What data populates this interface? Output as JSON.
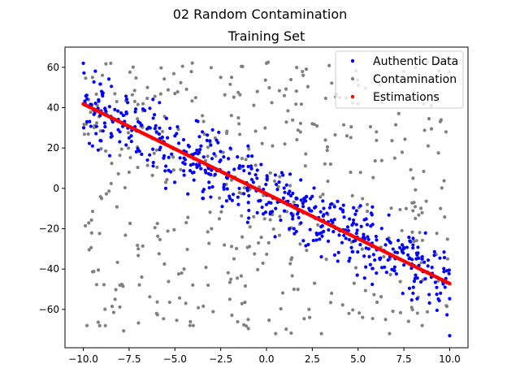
{
  "figure": {
    "suptitle": "02 Random Contamination"
  },
  "chart_data": {
    "type": "scatter",
    "title": "Training Set",
    "xlabel": "",
    "ylabel": "",
    "xlim": [
      -11,
      11
    ],
    "ylim": [
      -79,
      70
    ],
    "grid": false,
    "legend_position": "top-right",
    "x_ticks": [
      -10.0,
      -7.5,
      -5.0,
      -2.5,
      0.0,
      2.5,
      5.0,
      7.5,
      10.0
    ],
    "x_tick_labels": [
      "−10.0",
      "−7.5",
      "−5.0",
      "−2.5",
      "0.0",
      "2.5",
      "5.0",
      "7.5",
      "10.0"
    ],
    "y_ticks": [
      -60,
      -40,
      -20,
      0,
      20,
      40,
      60
    ],
    "y_tick_labels": [
      "−60",
      "−40",
      "−20",
      "0",
      "20",
      "40",
      "60"
    ],
    "series": [
      {
        "name": "Authentic Data",
        "color": "#0000ff",
        "description": "Points scattered around a line y ≈ -4.45x - 2.7 with noise of roughly ±12",
        "trend": {
          "slope": -4.45,
          "intercept": -2.7,
          "spread": 12
        },
        "x_range": [
          -10,
          10
        ],
        "sample_points": [
          [
            -10,
            62
          ],
          [
            -9.8,
            33
          ],
          [
            -9.5,
            21
          ],
          [
            -9,
            48
          ],
          [
            -8.5,
            35
          ],
          [
            -8,
            28
          ],
          [
            -7.5,
            25
          ],
          [
            -7,
            33
          ],
          [
            -6.5,
            14
          ],
          [
            -6,
            28
          ],
          [
            -5.5,
            0
          ],
          [
            -5,
            26
          ],
          [
            -4.5,
            15
          ],
          [
            -4,
            12
          ],
          [
            -3.5,
            28
          ],
          [
            -3,
            9
          ],
          [
            -2.5,
            14
          ],
          [
            -2,
            -5
          ],
          [
            -1.5,
            10
          ],
          [
            -1,
            16
          ],
          [
            -0.5,
            9
          ],
          [
            0,
            -8
          ],
          [
            0.5,
            -10
          ],
          [
            1,
            -2
          ],
          [
            1.5,
            -20
          ],
          [
            2,
            -9
          ],
          [
            2.5,
            -4
          ],
          [
            3,
            -22
          ],
          [
            3.5,
            -8
          ],
          [
            4,
            -21
          ],
          [
            4.5,
            -36
          ],
          [
            5,
            -25
          ],
          [
            5.5,
            -18
          ],
          [
            6,
            -42
          ],
          [
            6.5,
            -28
          ],
          [
            7,
            -39
          ],
          [
            7.5,
            -38
          ],
          [
            8,
            -52
          ],
          [
            8.5,
            -35
          ],
          [
            9,
            -44
          ],
          [
            9.5,
            -52
          ],
          [
            10,
            -73
          ]
        ]
      },
      {
        "name": "Contamination",
        "color": "#808080",
        "description": "Points uniformly scattered over the whole plot area",
        "x_range": [
          -10,
          10
        ],
        "y_range": [
          -73,
          63
        ],
        "sample_points": [
          [
            -9.8,
            -68
          ],
          [
            -9.5,
            55
          ],
          [
            -9,
            -5
          ],
          [
            -8.5,
            62
          ],
          [
            -8,
            -48
          ],
          [
            -7.5,
            8
          ],
          [
            -7,
            -30
          ],
          [
            -6.5,
            50
          ],
          [
            -6,
            -62
          ],
          [
            -5.5,
            3
          ],
          [
            -5,
            47
          ],
          [
            -4.5,
            -40
          ],
          [
            -4,
            -68
          ],
          [
            -3.5,
            36
          ],
          [
            -3,
            -20
          ],
          [
            -2.5,
            55
          ],
          [
            -2,
            -55
          ],
          [
            -1.5,
            32
          ],
          [
            -1,
            -65
          ],
          [
            -0.5,
            48
          ],
          [
            0,
            62
          ],
          [
            0.5,
            -72
          ],
          [
            1,
            22
          ],
          [
            1.5,
            -50
          ],
          [
            2,
            56
          ],
          [
            2.5,
            32
          ],
          [
            3,
            -72
          ],
          [
            3.5,
            12
          ],
          [
            4,
            45
          ],
          [
            4.5,
            -62
          ],
          [
            5,
            42
          ],
          [
            5.5,
            -8
          ],
          [
            6,
            28
          ],
          [
            6.5,
            -65
          ],
          [
            7,
            15
          ],
          [
            7.5,
            58
          ],
          [
            8,
            5
          ],
          [
            8.5,
            -68
          ],
          [
            9,
            41
          ],
          [
            9.5,
            -10
          ],
          [
            9.8,
            28
          ]
        ]
      },
      {
        "name": "Estimations",
        "color": "#ff0000",
        "description": "Fitted regression line drawn as densely packed red points",
        "x": [
          -10,
          10
        ],
        "y": [
          41.8,
          -47.2
        ]
      }
    ]
  }
}
